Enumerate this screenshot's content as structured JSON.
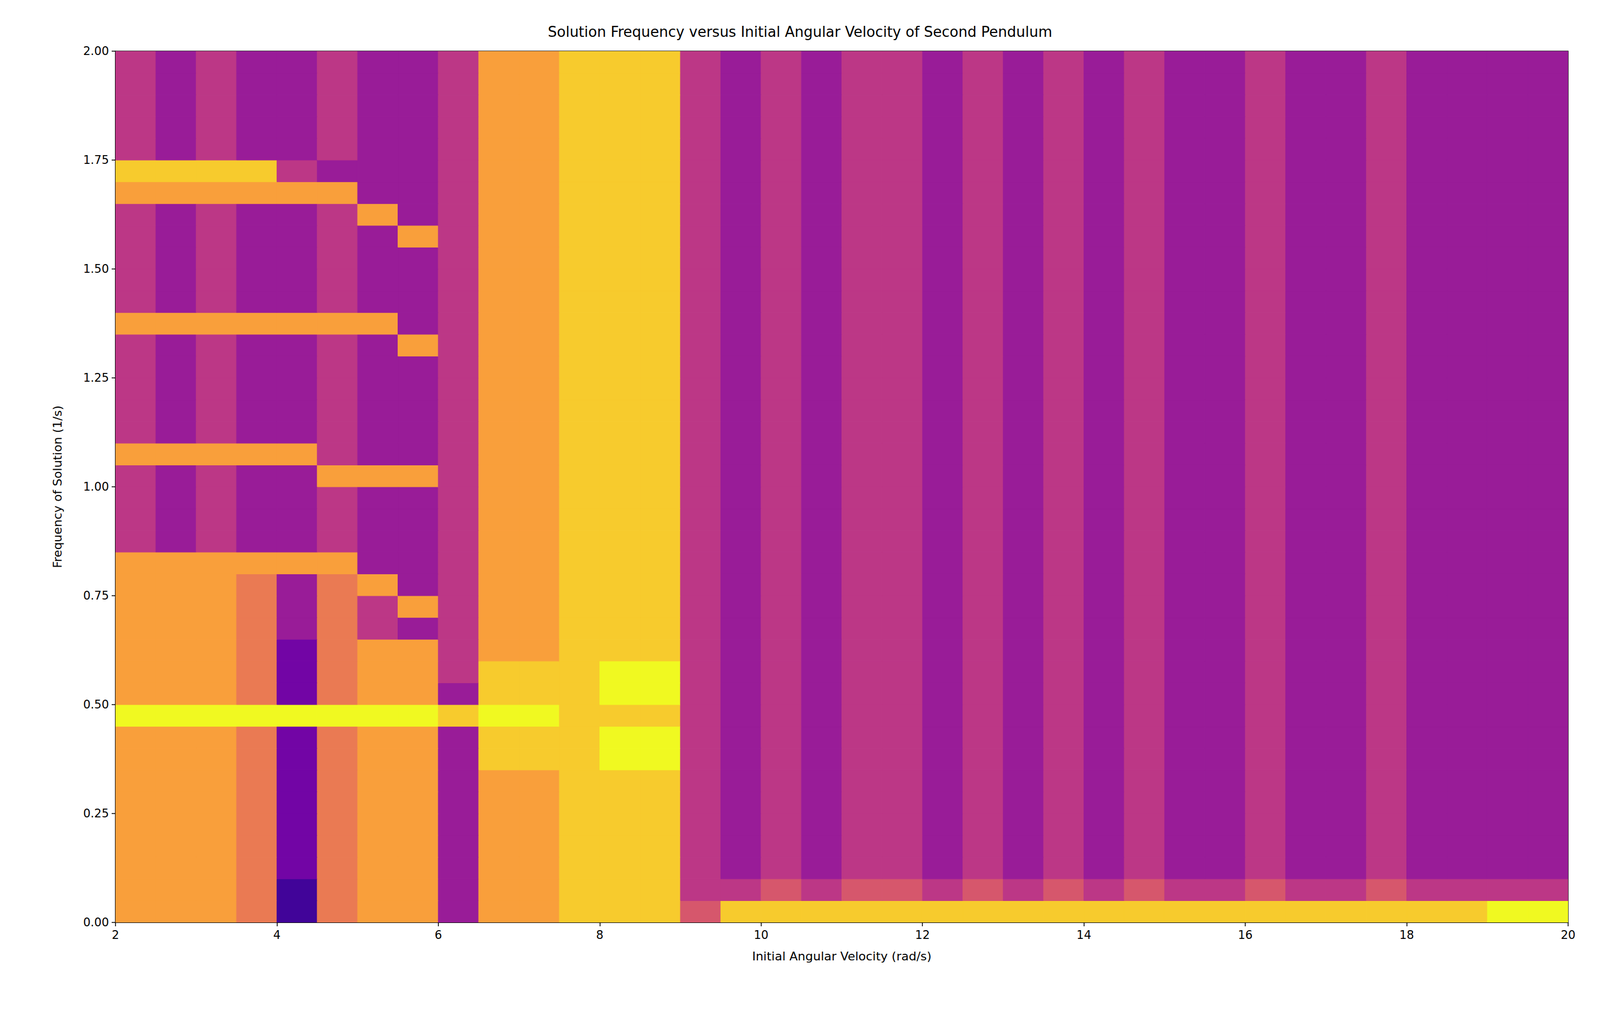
{
  "chart_data": {
    "type": "heatmap",
    "title": "Solution Frequency versus Initial Angular Velocity of Second Pendulum",
    "x_label": "Initial Angular Velocity (rad/s)",
    "y_label": "Frequency of Solution (1/s)",
    "xlim": [
      2,
      20
    ],
    "ylim": [
      0,
      2
    ],
    "xticks": [
      2,
      4,
      6,
      8,
      10,
      12,
      14,
      16,
      18,
      20
    ],
    "yticks": [
      {
        "value": 0,
        "label": "0.00"
      },
      {
        "value": 0.25,
        "label": "0.25"
      },
      {
        "value": 0.5,
        "label": "0.50"
      },
      {
        "value": 0.75,
        "label": "0.75"
      },
      {
        "value": 1,
        "label": "1.00"
      },
      {
        "value": 1.25,
        "label": "1.25"
      },
      {
        "value": 1.5,
        "label": "1.50"
      },
      {
        "value": 1.75,
        "label": "1.75"
      },
      {
        "value": 2,
        "label": "2.00"
      }
    ],
    "grid": false,
    "x_bins": [
      2,
      2.5,
      3,
      3.5,
      4,
      4.5,
      5,
      5.5,
      6,
      6.5,
      7,
      7.5,
      8,
      8.5,
      9,
      9.5,
      10,
      10.5,
      11,
      11.5,
      12,
      12.5,
      13,
      13.5,
      14,
      14.5,
      15,
      15.5,
      16,
      16.5,
      17,
      17.5,
      18,
      18.5,
      19,
      19.5,
      20
    ],
    "y_bins": [
      0,
      0.05,
      0.1,
      0.15,
      0.2,
      0.25,
      0.3,
      0.35,
      0.4,
      0.45,
      0.5,
      0.55,
      0.6,
      0.65,
      0.7,
      0.75,
      0.8,
      0.85,
      0.9,
      0.95,
      1,
      1.05,
      1.1,
      1.15,
      1.2,
      1.25,
      1.3,
      1.35,
      1.4,
      1.45,
      1.5,
      1.55,
      1.6,
      1.65,
      1.7,
      1.75,
      1.8,
      1.85,
      1.9,
      1.95,
      2
    ],
    "color_range": [
      0,
      9
    ],
    "cells": [
      [
        7,
        7,
        7,
        6,
        1,
        6,
        7,
        7,
        3,
        7,
        7,
        8,
        8,
        8,
        5,
        8,
        8,
        8,
        8,
        8,
        8,
        8,
        8,
        8,
        8,
        8,
        8,
        8,
        8,
        8,
        8,
        8,
        8,
        8,
        9,
        9
      ],
      [
        7,
        7,
        7,
        6,
        1,
        6,
        7,
        7,
        3,
        7,
        7,
        8,
        8,
        8,
        4,
        4,
        5,
        4,
        5,
        5,
        4,
        5,
        4,
        5,
        4,
        5,
        4,
        4,
        5,
        4,
        4,
        5,
        4,
        4,
        4,
        4
      ],
      [
        7,
        7,
        7,
        6,
        2,
        6,
        7,
        7,
        3,
        7,
        7,
        8,
        8,
        8,
        4,
        3,
        4,
        3,
        4,
        4,
        3,
        4,
        3,
        4,
        3,
        4,
        3,
        3,
        4,
        3,
        3,
        4,
        3,
        3,
        3,
        3
      ],
      [
        7,
        7,
        7,
        6,
        2,
        6,
        7,
        7,
        3,
        7,
        7,
        8,
        8,
        8,
        4,
        3,
        4,
        3,
        4,
        4,
        3,
        4,
        3,
        4,
        3,
        4,
        3,
        3,
        4,
        3,
        3,
        4,
        3,
        3,
        3,
        3
      ],
      [
        7,
        7,
        7,
        6,
        2,
        6,
        7,
        7,
        3,
        7,
        7,
        8,
        8,
        8,
        4,
        3,
        4,
        3,
        4,
        4,
        3,
        4,
        3,
        4,
        3,
        4,
        3,
        3,
        4,
        3,
        3,
        4,
        3,
        3,
        3,
        3
      ],
      [
        7,
        7,
        7,
        6,
        2,
        6,
        7,
        7,
        3,
        7,
        7,
        8,
        8,
        8,
        4,
        3,
        4,
        3,
        4,
        4,
        3,
        4,
        3,
        4,
        3,
        4,
        3,
        3,
        4,
        3,
        3,
        4,
        3,
        3,
        3,
        3
      ],
      [
        7,
        7,
        7,
        6,
        2,
        6,
        7,
        7,
        3,
        7,
        7,
        8,
        8,
        8,
        4,
        3,
        4,
        3,
        4,
        4,
        3,
        4,
        3,
        4,
        3,
        4,
        3,
        3,
        4,
        3,
        3,
        4,
        3,
        3,
        3,
        3
      ],
      [
        7,
        7,
        7,
        6,
        2,
        6,
        7,
        7,
        3,
        8,
        8,
        8,
        9,
        9,
        4,
        3,
        4,
        3,
        4,
        4,
        3,
        4,
        3,
        4,
        3,
        4,
        3,
        3,
        4,
        3,
        3,
        4,
        3,
        3,
        3,
        3
      ],
      [
        7,
        7,
        7,
        6,
        2,
        6,
        7,
        7,
        3,
        8,
        8,
        8,
        9,
        9,
        4,
        3,
        4,
        3,
        4,
        4,
        3,
        4,
        3,
        4,
        3,
        4,
        3,
        3,
        4,
        3,
        3,
        4,
        3,
        3,
        3,
        3
      ],
      [
        9,
        9,
        9,
        9,
        9,
        9,
        9,
        9,
        8,
        9,
        9,
        8,
        8,
        8,
        4,
        3,
        4,
        3,
        4,
        4,
        3,
        4,
        3,
        4,
        3,
        4,
        3,
        3,
        4,
        3,
        3,
        4,
        3,
        3,
        3,
        3
      ],
      [
        7,
        7,
        7,
        6,
        2,
        6,
        7,
        7,
        3,
        8,
        8,
        8,
        9,
        9,
        4,
        3,
        4,
        3,
        4,
        4,
        3,
        4,
        3,
        4,
        3,
        4,
        3,
        3,
        4,
        3,
        3,
        4,
        3,
        3,
        3,
        3
      ],
      [
        7,
        7,
        7,
        6,
        2,
        6,
        7,
        7,
        4,
        8,
        8,
        8,
        9,
        9,
        4,
        3,
        4,
        3,
        4,
        4,
        3,
        4,
        3,
        4,
        3,
        4,
        3,
        3,
        4,
        3,
        3,
        4,
        3,
        3,
        3,
        3
      ],
      [
        7,
        7,
        7,
        6,
        2,
        6,
        7,
        7,
        4,
        7,
        7,
        8,
        8,
        8,
        4,
        3,
        4,
        3,
        4,
        4,
        3,
        4,
        3,
        4,
        3,
        4,
        3,
        3,
        4,
        3,
        3,
        4,
        3,
        3,
        3,
        3
      ],
      [
        7,
        7,
        7,
        6,
        3,
        6,
        4,
        3,
        4,
        7,
        7,
        8,
        8,
        8,
        4,
        3,
        4,
        3,
        4,
        4,
        3,
        4,
        3,
        4,
        3,
        4,
        3,
        3,
        4,
        3,
        3,
        4,
        3,
        3,
        3,
        3
      ],
      [
        7,
        7,
        7,
        6,
        3,
        6,
        4,
        7,
        4,
        7,
        7,
        8,
        8,
        8,
        4,
        3,
        4,
        3,
        4,
        4,
        3,
        4,
        3,
        4,
        3,
        4,
        3,
        3,
        4,
        3,
        3,
        4,
        3,
        3,
        3,
        3
      ],
      [
        7,
        7,
        7,
        6,
        3,
        6,
        7,
        3,
        4,
        7,
        7,
        8,
        8,
        8,
        4,
        3,
        4,
        3,
        4,
        4,
        3,
        4,
        3,
        4,
        3,
        4,
        3,
        3,
        4,
        3,
        3,
        4,
        3,
        3,
        3,
        3
      ],
      [
        7,
        7,
        7,
        7,
        7,
        7,
        3,
        3,
        4,
        7,
        7,
        8,
        8,
        8,
        4,
        3,
        4,
        3,
        4,
        4,
        3,
        4,
        3,
        4,
        3,
        4,
        3,
        3,
        4,
        3,
        3,
        4,
        3,
        3,
        3,
        3
      ],
      [
        4,
        3,
        4,
        3,
        3,
        4,
        3,
        3,
        4,
        7,
        7,
        8,
        8,
        8,
        4,
        3,
        4,
        3,
        4,
        4,
        3,
        4,
        3,
        4,
        3,
        4,
        3,
        3,
        4,
        3,
        3,
        4,
        3,
        3,
        3,
        3
      ],
      [
        4,
        3,
        4,
        3,
        3,
        4,
        3,
        3,
        4,
        7,
        7,
        8,
        8,
        8,
        4,
        3,
        4,
        3,
        4,
        4,
        3,
        4,
        3,
        4,
        3,
        4,
        3,
        3,
        4,
        3,
        3,
        4,
        3,
        3,
        3,
        3
      ],
      [
        4,
        3,
        4,
        3,
        3,
        4,
        3,
        3,
        4,
        7,
        7,
        8,
        8,
        8,
        4,
        3,
        4,
        3,
        4,
        4,
        3,
        4,
        3,
        4,
        3,
        4,
        3,
        3,
        4,
        3,
        3,
        4,
        3,
        3,
        3,
        3
      ],
      [
        4,
        3,
        4,
        3,
        3,
        7,
        7,
        7,
        4,
        7,
        7,
        8,
        8,
        8,
        4,
        3,
        4,
        3,
        4,
        4,
        3,
        4,
        3,
        4,
        3,
        4,
        3,
        3,
        4,
        3,
        3,
        4,
        3,
        3,
        3,
        3
      ],
      [
        7,
        7,
        7,
        7,
        7,
        4,
        3,
        3,
        4,
        7,
        7,
        8,
        8,
        8,
        4,
        3,
        4,
        3,
        4,
        4,
        3,
        4,
        3,
        4,
        3,
        4,
        3,
        3,
        4,
        3,
        3,
        4,
        3,
        3,
        3,
        3
      ],
      [
        4,
        3,
        4,
        3,
        3,
        4,
        3,
        3,
        4,
        7,
        7,
        8,
        8,
        8,
        4,
        3,
        4,
        3,
        4,
        4,
        3,
        4,
        3,
        4,
        3,
        4,
        3,
        3,
        4,
        3,
        3,
        4,
        3,
        3,
        3,
        3
      ],
      [
        4,
        3,
        4,
        3,
        3,
        4,
        3,
        3,
        4,
        7,
        7,
        8,
        8,
        8,
        4,
        3,
        4,
        3,
        4,
        4,
        3,
        4,
        3,
        4,
        3,
        4,
        3,
        3,
        4,
        3,
        3,
        4,
        3,
        3,
        3,
        3
      ],
      [
        4,
        3,
        4,
        3,
        3,
        4,
        3,
        3,
        4,
        7,
        7,
        8,
        8,
        8,
        4,
        3,
        4,
        3,
        4,
        4,
        3,
        4,
        3,
        4,
        3,
        4,
        3,
        3,
        4,
        3,
        3,
        4,
        3,
        3,
        3,
        3
      ],
      [
        4,
        3,
        4,
        3,
        3,
        4,
        3,
        3,
        4,
        7,
        7,
        8,
        8,
        8,
        4,
        3,
        4,
        3,
        4,
        4,
        3,
        4,
        3,
        4,
        3,
        4,
        3,
        3,
        4,
        3,
        3,
        4,
        3,
        3,
        3,
        3
      ],
      [
        4,
        3,
        4,
        3,
        3,
        4,
        3,
        7,
        4,
        7,
        7,
        8,
        8,
        8,
        4,
        3,
        4,
        3,
        4,
        4,
        3,
        4,
        3,
        4,
        3,
        4,
        3,
        3,
        4,
        3,
        3,
        4,
        3,
        3,
        3,
        3
      ],
      [
        7,
        7,
        7,
        7,
        7,
        7,
        7,
        3,
        4,
        7,
        7,
        8,
        8,
        8,
        4,
        3,
        4,
        3,
        4,
        4,
        3,
        4,
        3,
        4,
        3,
        4,
        3,
        3,
        4,
        3,
        3,
        4,
        3,
        3,
        3,
        3
      ],
      [
        4,
        3,
        4,
        3,
        3,
        4,
        3,
        3,
        4,
        7,
        7,
        8,
        8,
        8,
        4,
        3,
        4,
        3,
        4,
        4,
        3,
        4,
        3,
        4,
        3,
        4,
        3,
        3,
        4,
        3,
        3,
        4,
        3,
        3,
        3,
        3
      ],
      [
        4,
        3,
        4,
        3,
        3,
        4,
        3,
        3,
        4,
        7,
        7,
        8,
        8,
        8,
        4,
        3,
        4,
        3,
        4,
        4,
        3,
        4,
        3,
        4,
        3,
        4,
        3,
        3,
        4,
        3,
        3,
        4,
        3,
        3,
        3,
        3
      ],
      [
        4,
        3,
        4,
        3,
        3,
        4,
        3,
        3,
        4,
        7,
        7,
        8,
        8,
        8,
        4,
        3,
        4,
        3,
        4,
        4,
        3,
        4,
        3,
        4,
        3,
        4,
        3,
        3,
        4,
        3,
        3,
        4,
        3,
        3,
        3,
        3
      ],
      [
        4,
        3,
        4,
        3,
        3,
        4,
        3,
        7,
        4,
        7,
        7,
        8,
        8,
        8,
        4,
        3,
        4,
        3,
        4,
        4,
        3,
        4,
        3,
        4,
        3,
        4,
        3,
        3,
        4,
        3,
        3,
        4,
        3,
        3,
        3,
        3
      ],
      [
        4,
        3,
        4,
        3,
        3,
        4,
        7,
        3,
        4,
        7,
        7,
        8,
        8,
        8,
        4,
        3,
        4,
        3,
        4,
        4,
        3,
        4,
        3,
        4,
        3,
        4,
        3,
        3,
        4,
        3,
        3,
        4,
        3,
        3,
        3,
        3
      ],
      [
        7,
        7,
        7,
        7,
        7,
        7,
        3,
        3,
        4,
        7,
        7,
        8,
        8,
        8,
        4,
        3,
        4,
        3,
        4,
        4,
        3,
        4,
        3,
        4,
        3,
        4,
        3,
        3,
        4,
        3,
        3,
        4,
        3,
        3,
        3,
        3
      ],
      [
        8,
        8,
        8,
        8,
        4,
        3,
        3,
        3,
        4,
        7,
        7,
        8,
        8,
        8,
        4,
        3,
        4,
        3,
        4,
        4,
        3,
        4,
        3,
        4,
        3,
        4,
        3,
        3,
        4,
        3,
        3,
        4,
        3,
        3,
        3,
        3
      ],
      [
        4,
        3,
        4,
        3,
        3,
        4,
        3,
        3,
        4,
        7,
        7,
        8,
        8,
        8,
        4,
        3,
        4,
        3,
        4,
        4,
        3,
        4,
        3,
        4,
        3,
        4,
        3,
        3,
        4,
        3,
        3,
        4,
        3,
        3,
        3,
        3
      ],
      [
        4,
        3,
        4,
        3,
        3,
        4,
        3,
        3,
        4,
        7,
        7,
        8,
        8,
        8,
        4,
        3,
        4,
        3,
        4,
        4,
        3,
        4,
        3,
        4,
        3,
        4,
        3,
        3,
        4,
        3,
        3,
        4,
        3,
        3,
        3,
        3
      ],
      [
        4,
        3,
        4,
        3,
        3,
        4,
        3,
        3,
        4,
        7,
        7,
        8,
        8,
        8,
        4,
        3,
        4,
        3,
        4,
        4,
        3,
        4,
        3,
        4,
        3,
        4,
        3,
        3,
        4,
        3,
        3,
        4,
        3,
        3,
        3,
        3
      ],
      [
        4,
        3,
        4,
        3,
        3,
        4,
        3,
        3,
        4,
        7,
        7,
        8,
        8,
        8,
        4,
        3,
        4,
        3,
        4,
        4,
        3,
        4,
        3,
        4,
        3,
        4,
        3,
        3,
        4,
        3,
        3,
        4,
        3,
        3,
        3,
        3
      ],
      [
        4,
        3,
        4,
        3,
        3,
        4,
        3,
        3,
        4,
        7,
        7,
        8,
        8,
        8,
        4,
        3,
        4,
        3,
        4,
        4,
        3,
        4,
        3,
        4,
        3,
        4,
        3,
        3,
        4,
        3,
        3,
        4,
        3,
        3,
        3,
        3
      ]
    ]
  }
}
